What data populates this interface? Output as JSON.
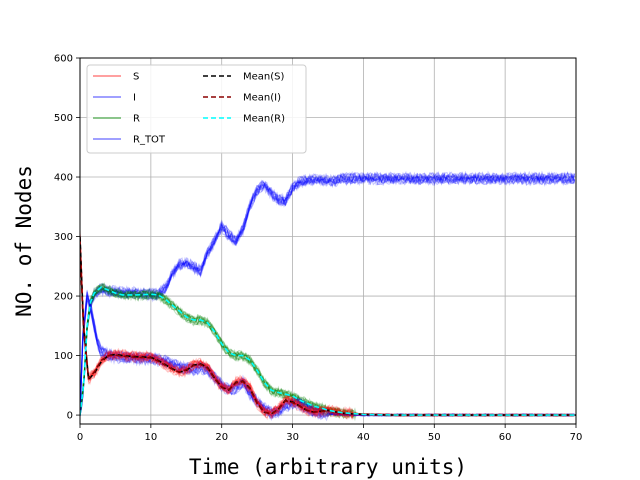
{
  "chart_data": {
    "type": "line",
    "title": "",
    "xlabel": "Time (arbitrary units)",
    "ylabel": "NO. of Nodes",
    "xlim": [
      0,
      70
    ],
    "ylim": [
      -15,
      600
    ],
    "xticks": [
      0,
      10,
      20,
      30,
      40,
      50,
      60,
      70
    ],
    "yticks": [
      0,
      100,
      200,
      300,
      400,
      500,
      600
    ],
    "grid": true,
    "legend_position": "top-left",
    "legend": [
      "S",
      "I",
      "R",
      "R_TOT",
      "Mean(S)",
      "Mean(I)",
      "Mean(R)"
    ],
    "series": [
      {
        "name": "S",
        "color": "#ff0000",
        "style": "solid",
        "band": 14,
        "x": [
          0,
          0.5,
          1.2,
          2,
          3,
          4,
          5,
          6,
          8,
          10,
          11,
          12,
          13,
          14,
          15,
          16,
          17,
          18,
          19,
          20,
          21,
          22,
          23,
          24,
          25,
          26,
          27,
          28,
          29,
          30,
          31,
          32,
          33,
          35,
          37,
          40,
          45,
          70
        ],
        "y": [
          300,
          150,
          60,
          70,
          90,
          100,
          102,
          100,
          98,
          97,
          92,
          85,
          78,
          72,
          75,
          84,
          86,
          80,
          62,
          47,
          42,
          55,
          57,
          45,
          20,
          5,
          2,
          10,
          25,
          22,
          15,
          8,
          5,
          8,
          3,
          1,
          0,
          0
        ]
      },
      {
        "name": "I",
        "color": "#0000ff",
        "style": "solid",
        "band": 16,
        "x": [
          0,
          0.4,
          1,
          1.5,
          2,
          2.5,
          3,
          4,
          5,
          6,
          8,
          10,
          12,
          14,
          16,
          17,
          18,
          19,
          20,
          21,
          22,
          23,
          24,
          25,
          26,
          27,
          28,
          29,
          30,
          31,
          32,
          33,
          35,
          37,
          40,
          45,
          70
        ],
        "y": [
          0,
          130,
          200,
          180,
          150,
          120,
          105,
          100,
          98,
          96,
          94,
          95,
          90,
          80,
          76,
          80,
          75,
          62,
          50,
          42,
          45,
          55,
          35,
          22,
          10,
          3,
          5,
          15,
          20,
          18,
          10,
          5,
          2,
          1,
          0,
          0,
          0
        ]
      },
      {
        "name": "R",
        "color": "#008000",
        "style": "solid",
        "band": 14,
        "x": [
          0,
          0.5,
          1,
          1.5,
          2,
          3,
          4,
          5,
          6,
          8,
          10,
          11,
          12,
          13,
          14,
          15,
          16,
          17,
          18,
          19,
          20,
          21,
          22,
          23,
          24,
          25,
          26,
          27,
          28,
          29,
          30,
          31,
          32,
          33,
          34,
          35,
          37,
          40,
          45,
          70
        ],
        "y": [
          0,
          50,
          150,
          190,
          205,
          215,
          210,
          205,
          202,
          202,
          203,
          202,
          195,
          185,
          175,
          165,
          160,
          160,
          155,
          140,
          120,
          105,
          100,
          100,
          92,
          75,
          55,
          42,
          38,
          35,
          32,
          25,
          20,
          15,
          12,
          8,
          4,
          1,
          0,
          0
        ]
      },
      {
        "name": "R_TOT",
        "color": "#0000ff",
        "style": "solid",
        "band": 18,
        "x": [
          0,
          0.5,
          1,
          1.5,
          2,
          3,
          4,
          5,
          6,
          8,
          10,
          11,
          12,
          13,
          14,
          15,
          16,
          17,
          18,
          19,
          20,
          21,
          22,
          23,
          24,
          25,
          26,
          27,
          28,
          29,
          30,
          31,
          32,
          34,
          36,
          37,
          40,
          70
        ],
        "y": [
          0,
          50,
          150,
          190,
          205,
          215,
          210,
          210,
          208,
          208,
          205,
          205,
          215,
          240,
          255,
          258,
          252,
          245,
          275,
          295,
          320,
          305,
          295,
          315,
          355,
          380,
          390,
          375,
          365,
          362,
          385,
          395,
          397,
          398,
          396,
          400,
          400,
          400
        ]
      },
      {
        "name": "Mean(S)",
        "color": "#000000",
        "style": "dashed",
        "band": 0,
        "x": [
          0,
          0.5,
          1.2,
          2,
          3,
          4,
          5,
          6,
          8,
          10,
          11,
          12,
          13,
          14,
          15,
          16,
          17,
          18,
          19,
          20,
          21,
          22,
          23,
          24,
          25,
          26,
          27,
          28,
          29,
          30,
          31,
          32,
          33,
          35,
          37,
          40,
          45,
          70
        ],
        "y": [
          300,
          150,
          60,
          70,
          90,
          100,
          102,
          100,
          98,
          97,
          92,
          85,
          78,
          72,
          75,
          84,
          86,
          80,
          62,
          47,
          42,
          55,
          57,
          45,
          20,
          5,
          2,
          10,
          25,
          22,
          15,
          8,
          5,
          8,
          3,
          1,
          0,
          0
        ]
      },
      {
        "name": "Mean(I)",
        "color": "#8b0000",
        "style": "dashed",
        "band": 0,
        "x": [
          0,
          0.5,
          1.2,
          2,
          3,
          4,
          5,
          6,
          8,
          10,
          11,
          12,
          13,
          14,
          15,
          16,
          17,
          18,
          19,
          20,
          21,
          22,
          23,
          24,
          25,
          26,
          27,
          28,
          29,
          30,
          31,
          32,
          33,
          35,
          37,
          40,
          45,
          70
        ],
        "y": [
          280,
          145,
          62,
          72,
          92,
          100,
          101,
          99,
          97,
          96,
          91,
          84,
          77,
          72,
          76,
          83,
          85,
          79,
          61,
          47,
          43,
          54,
          56,
          44,
          20,
          5,
          2,
          10,
          24,
          21,
          15,
          8,
          5,
          7,
          3,
          1,
          0,
          0
        ]
      },
      {
        "name": "Mean(R)",
        "color": "#00ffff",
        "style": "dashed",
        "band": 0,
        "x": [
          0,
          0.5,
          1,
          1.5,
          2,
          3,
          4,
          5,
          6,
          8,
          10,
          11,
          12,
          13,
          14,
          15,
          16,
          17,
          18,
          19,
          20,
          21,
          22,
          23,
          24,
          25,
          26,
          27,
          28,
          29,
          30,
          31,
          32,
          33,
          34,
          35,
          37,
          40,
          45,
          70
        ],
        "y": [
          0,
          50,
          150,
          190,
          205,
          215,
          210,
          205,
          202,
          202,
          203,
          202,
          195,
          185,
          175,
          165,
          160,
          160,
          155,
          140,
          120,
          105,
          100,
          100,
          92,
          75,
          55,
          42,
          38,
          35,
          32,
          25,
          20,
          15,
          12,
          8,
          4,
          1,
          0,
          0
        ]
      }
    ]
  }
}
